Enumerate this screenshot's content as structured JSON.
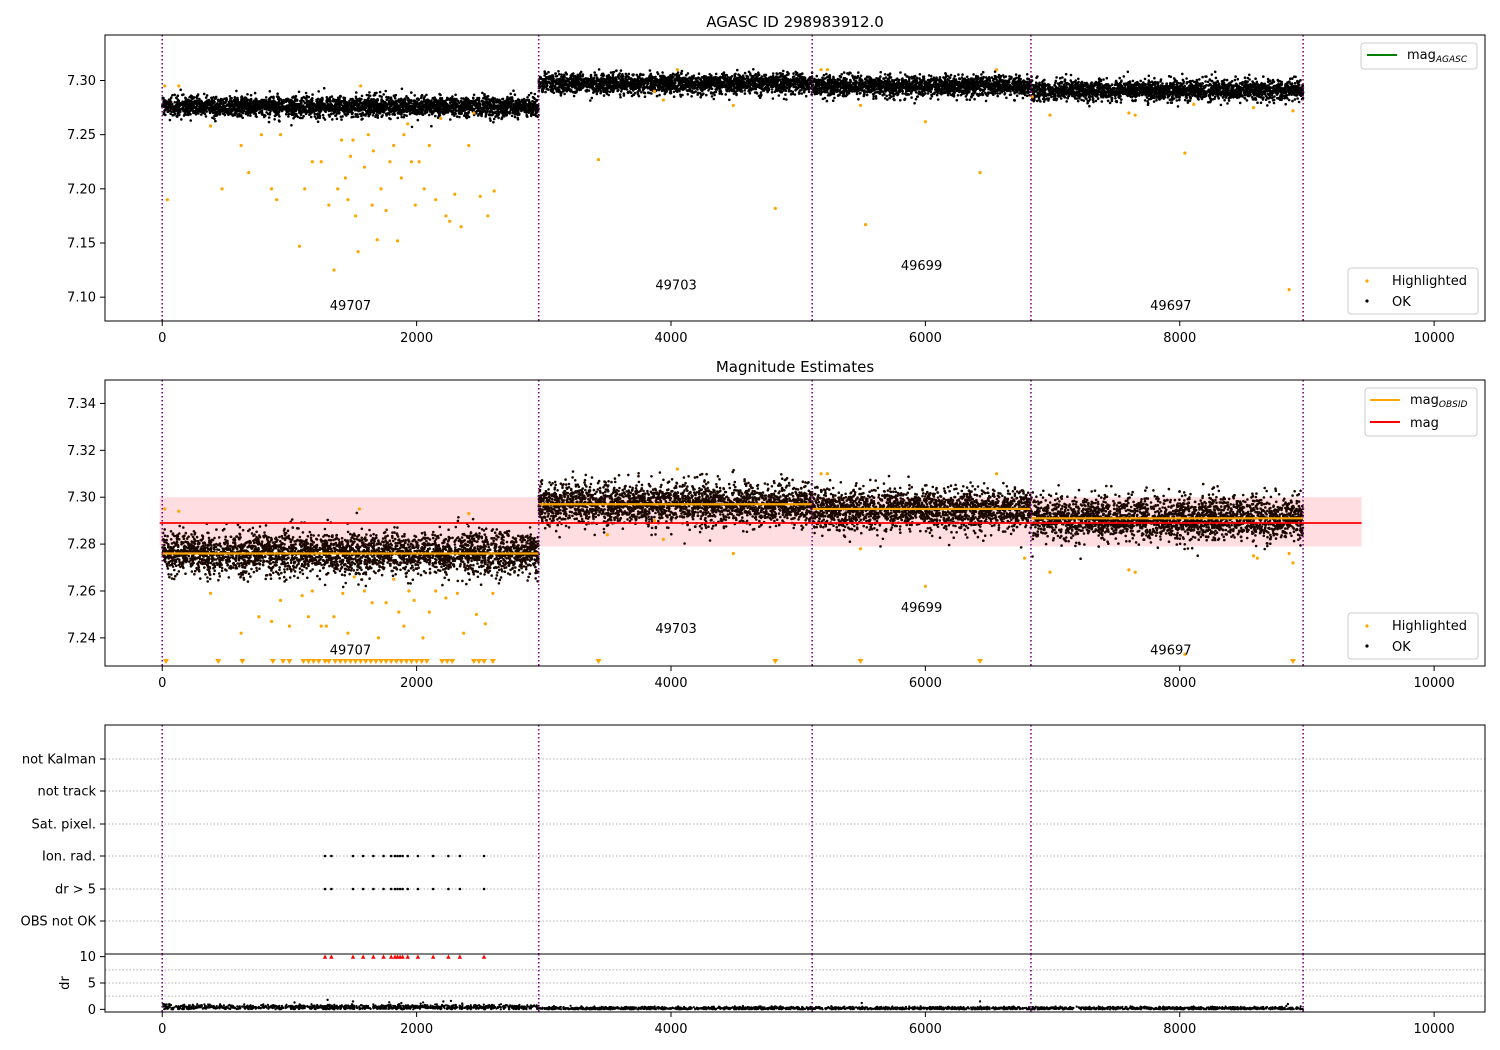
{
  "chart_data": [
    {
      "type": "scatter",
      "title": "AGASC ID 298983912.0",
      "xlabel": "",
      "ylabel": "",
      "xlim": [
        -450,
        10400
      ],
      "ylim": [
        7.078,
        7.342
      ],
      "xticks": [
        0,
        2000,
        4000,
        6000,
        8000,
        10000
      ],
      "yticks": [
        7.1,
        7.15,
        7.2,
        7.25,
        7.3
      ],
      "ytick_labels": [
        "7.10",
        "7.15",
        "7.20",
        "7.25",
        "7.30"
      ],
      "obsid_boundaries": [
        0,
        2960,
        5110,
        6830,
        8970
      ],
      "obsid_labels": [
        {
          "text": "49707",
          "x": 1480,
          "y": 7.088
        },
        {
          "text": "49703",
          "x": 4040,
          "y": 7.107
        },
        {
          "text": "49699",
          "x": 5970,
          "y": 7.125
        },
        {
          "text": "49697",
          "x": 7930,
          "y": 7.088
        }
      ],
      "legend_lines": [
        {
          "name": "mag",
          "sub": "AGASC",
          "color": "#008000"
        }
      ],
      "legend_points": [
        {
          "name": "Highlighted",
          "color": "#ffa500"
        },
        {
          "name": "OK",
          "color": "#000000"
        }
      ],
      "series": [
        {
          "name": "OK",
          "color": "#000000",
          "segments": [
            {
              "x": [
                0,
                2960
              ],
              "mean": 7.276,
              "spread": 0.0045
            },
            {
              "x": [
                2960,
                5110
              ],
              "mean": 7.297,
              "spread": 0.0045
            },
            {
              "x": [
                5110,
                6830
              ],
              "mean": 7.295,
              "spread": 0.0045
            },
            {
              "x": [
                6830,
                8970
              ],
              "mean": 7.291,
              "spread": 0.0045
            }
          ]
        },
        {
          "name": "Highlighted",
          "color": "#ffa500",
          "points": [
            [
              20,
              7.295
            ],
            [
              40,
              7.19
            ],
            [
              130,
              7.295
            ],
            [
              380,
              7.258
            ],
            [
              470,
              7.2
            ],
            [
              620,
              7.24
            ],
            [
              680,
              7.215
            ],
            [
              780,
              7.25
            ],
            [
              860,
              7.2
            ],
            [
              900,
              7.19
            ],
            [
              930,
              7.25
            ],
            [
              1080,
              7.147
            ],
            [
              1120,
              7.2
            ],
            [
              1180,
              7.225
            ],
            [
              1250,
              7.225
            ],
            [
              1310,
              7.185
            ],
            [
              1350,
              7.125
            ],
            [
              1380,
              7.2
            ],
            [
              1410,
              7.245
            ],
            [
              1440,
              7.21
            ],
            [
              1460,
              7.19
            ],
            [
              1480,
              7.23
            ],
            [
              1500,
              7.245
            ],
            [
              1520,
              7.175
            ],
            [
              1540,
              7.142
            ],
            [
              1560,
              7.295
            ],
            [
              1590,
              7.22
            ],
            [
              1620,
              7.25
            ],
            [
              1650,
              7.185
            ],
            [
              1660,
              7.235
            ],
            [
              1690,
              7.153
            ],
            [
              1720,
              7.2
            ],
            [
              1760,
              7.18
            ],
            [
              1790,
              7.225
            ],
            [
              1820,
              7.24
            ],
            [
              1850,
              7.152
            ],
            [
              1880,
              7.21
            ],
            [
              1900,
              7.25
            ],
            [
              1930,
              7.26
            ],
            [
              1960,
              7.225
            ],
            [
              1990,
              7.185
            ],
            [
              2020,
              7.225
            ],
            [
              2060,
              7.2
            ],
            [
              2100,
              7.24
            ],
            [
              2150,
              7.19
            ],
            [
              2190,
              7.265
            ],
            [
              2230,
              7.175
            ],
            [
              2260,
              7.17
            ],
            [
              2300,
              7.195
            ],
            [
              2350,
              7.165
            ],
            [
              2410,
              7.24
            ],
            [
              2450,
              7.27
            ],
            [
              2500,
              7.193
            ],
            [
              2560,
              7.175
            ],
            [
              2610,
              7.198
            ],
            [
              3430,
              7.227
            ],
            [
              3870,
              7.29
            ],
            [
              3940,
              7.282
            ],
            [
              4050,
              7.31
            ],
            [
              4490,
              7.277
            ],
            [
              4820,
              7.182
            ],
            [
              5180,
              7.31
            ],
            [
              5230,
              7.31
            ],
            [
              5490,
              7.277
            ],
            [
              5530,
              7.167
            ],
            [
              6000,
              7.262
            ],
            [
              6430,
              7.215
            ],
            [
              6560,
              7.31
            ],
            [
              6840,
              7.285
            ],
            [
              6980,
              7.268
            ],
            [
              7600,
              7.27
            ],
            [
              7650,
              7.268
            ],
            [
              8040,
              7.233
            ],
            [
              8110,
              7.278
            ],
            [
              8580,
              7.275
            ],
            [
              8860,
              7.107
            ],
            [
              8890,
              7.272
            ]
          ]
        }
      ]
    },
    {
      "type": "scatter",
      "title": "Magnitude Estimates",
      "xlabel": "",
      "ylabel": "",
      "xlim": [
        -450,
        10400
      ],
      "ylim": [
        7.228,
        7.35
      ],
      "xticks": [
        0,
        2000,
        4000,
        6000,
        8000,
        10000
      ],
      "yticks": [
        7.24,
        7.26,
        7.28,
        7.3,
        7.32,
        7.34
      ],
      "ytick_labels": [
        "7.24",
        "7.26",
        "7.28",
        "7.30",
        "7.32",
        "7.34"
      ],
      "obsid_boundaries": [
        0,
        2960,
        5110,
        6830,
        8970
      ],
      "obsid_labels": [
        {
          "text": "49707",
          "x": 1480,
          "y": 7.233
        },
        {
          "text": "49703",
          "x": 4040,
          "y": 7.242
        },
        {
          "text": "49699",
          "x": 5970,
          "y": 7.251
        },
        {
          "text": "49697",
          "x": 7930,
          "y": 7.233
        }
      ],
      "mag_line": {
        "value": 7.289,
        "band": [
          7.279,
          7.3
        ],
        "x": [
          -20,
          9430
        ],
        "color": "#ff0000",
        "band_color": "#ffdde1"
      },
      "obsid_mean_lines": [
        {
          "x": [
            0,
            2960
          ],
          "value": 7.276
        },
        {
          "x": [
            2960,
            5110
          ],
          "value": 7.297
        },
        {
          "x": [
            5110,
            6830
          ],
          "value": 7.295
        },
        {
          "x": [
            6830,
            8970
          ],
          "value": 7.291
        }
      ],
      "legend_lines": [
        {
          "name": "mag",
          "sub": "OBSID",
          "color": "#ffa500"
        },
        {
          "name": "mag",
          "sub": "",
          "color": "#ff0000"
        }
      ],
      "legend_points": [
        {
          "name": "Highlighted",
          "color": "#ffa500"
        },
        {
          "name": "OK",
          "color": "#000000"
        }
      ],
      "series": [
        {
          "name": "OK",
          "color": "#000000",
          "segments": [
            {
              "x": [
                0,
                2960
              ],
              "mean": 7.276,
              "spread": 0.0045
            },
            {
              "x": [
                2960,
                5110
              ],
              "mean": 7.297,
              "spread": 0.0045
            },
            {
              "x": [
                5110,
                6830
              ],
              "mean": 7.295,
              "spread": 0.0045
            },
            {
              "x": [
                6830,
                8970
              ],
              "mean": 7.291,
              "spread": 0.0045
            }
          ]
        },
        {
          "name": "Highlighted",
          "color": "#ffa500",
          "points": [
            [
              20,
              7.295
            ],
            [
              130,
              7.294
            ],
            [
              380,
              7.259
            ],
            [
              620,
              7.242
            ],
            [
              760,
              7.249
            ],
            [
              860,
              7.247
            ],
            [
              930,
              7.256
            ],
            [
              1000,
              7.245
            ],
            [
              1100,
              7.258
            ],
            [
              1150,
              7.249
            ],
            [
              1180,
              7.26
            ],
            [
              1250,
              7.245
            ],
            [
              1290,
              7.245
            ],
            [
              1350,
              7.249
            ],
            [
              1420,
              7.259
            ],
            [
              1460,
              7.242
            ],
            [
              1510,
              7.266
            ],
            [
              1550,
              7.295
            ],
            [
              1590,
              7.26
            ],
            [
              1650,
              7.255
            ],
            [
              1700,
              7.24
            ],
            [
              1760,
              7.255
            ],
            [
              1820,
              7.265
            ],
            [
              1860,
              7.251
            ],
            [
              1900,
              7.245
            ],
            [
              1940,
              7.26
            ],
            [
              1980,
              7.256
            ],
            [
              2050,
              7.24
            ],
            [
              2100,
              7.251
            ],
            [
              2150,
              7.26
            ],
            [
              2230,
              7.257
            ],
            [
              2320,
              7.259
            ],
            [
              2370,
              7.242
            ],
            [
              2410,
              7.293
            ],
            [
              2470,
              7.25
            ],
            [
              2540,
              7.246
            ],
            [
              2600,
              7.259
            ],
            [
              3500,
              7.284
            ],
            [
              3870,
              7.29
            ],
            [
              3940,
              7.282
            ],
            [
              4050,
              7.312
            ],
            [
              4490,
              7.276
            ],
            [
              5180,
              7.31
            ],
            [
              5230,
              7.31
            ],
            [
              5490,
              7.278
            ],
            [
              6000,
              7.262
            ],
            [
              6560,
              7.31
            ],
            [
              6780,
              7.274
            ],
            [
              6980,
              7.268
            ],
            [
              7600,
              7.269
            ],
            [
              7650,
              7.268
            ],
            [
              8040,
              7.233
            ],
            [
              8580,
              7.275
            ],
            [
              8610,
              7.274
            ],
            [
              8860,
              7.276
            ],
            [
              8890,
              7.272
            ]
          ]
        },
        {
          "name": "below-range",
          "color": "#ffa500",
          "marker": "triangle-down",
          "points": [
            [
              30
            ],
            [
              440
            ],
            [
              630
            ],
            [
              870
            ],
            [
              950
            ],
            [
              1000
            ],
            [
              1110
            ],
            [
              1150
            ],
            [
              1190
            ],
            [
              1230
            ],
            [
              1280
            ],
            [
              1310
            ],
            [
              1360
            ],
            [
              1400
            ],
            [
              1440
            ],
            [
              1480
            ],
            [
              1520
            ],
            [
              1560
            ],
            [
              1600
            ],
            [
              1640
            ],
            [
              1680
            ],
            [
              1720
            ],
            [
              1760
            ],
            [
              1800
            ],
            [
              1840
            ],
            [
              1880
            ],
            [
              1920
            ],
            [
              1960
            ],
            [
              2000
            ],
            [
              2040
            ],
            [
              2080
            ],
            [
              2200
            ],
            [
              2240
            ],
            [
              2280
            ],
            [
              2450
            ],
            [
              2490
            ],
            [
              2530
            ],
            [
              2600
            ],
            [
              3430
            ],
            [
              4820
            ],
            [
              5490
            ],
            [
              6430
            ],
            [
              8890
            ]
          ]
        }
      ]
    },
    {
      "type": "scatter",
      "title": "",
      "xlabel": "",
      "ylabel": "",
      "categories": [
        "not Kalman",
        "not track",
        "Sat. pixel.",
        "Ion. rad.",
        "dr > 5",
        "OBS not OK"
      ],
      "xlim": [
        -450,
        10400
      ],
      "obsid_boundaries": [
        0,
        2960,
        5110,
        6830,
        8970
      ],
      "flag_points": {
        "Ion. rad.": [
          1280,
          1330,
          1500,
          1580,
          1660,
          1740,
          1800,
          1830,
          1850,
          1870,
          1890,
          1930,
          2010,
          2130,
          2250,
          2340,
          2530
        ],
        "dr > 5": [
          1280,
          1330,
          1500,
          1580,
          1660,
          1740,
          1800,
          1830,
          1850,
          1870,
          1890,
          1930,
          2010,
          2130,
          2250,
          2340,
          2530
        ]
      }
    },
    {
      "type": "scatter",
      "title": "",
      "xlabel": "",
      "ylabel": "dr",
      "xlim": [
        -450,
        10400
      ],
      "ylim": [
        -0.5,
        10.5
      ],
      "xticks": [
        0,
        2000,
        4000,
        6000,
        8000,
        10000
      ],
      "yticks": [
        0,
        5,
        10
      ],
      "ytick_labels": [
        "0",
        "5",
        "10"
      ],
      "obsid_boundaries": [
        0,
        2960,
        5110,
        6830,
        8970
      ],
      "clipped_marker_color": "#ff0000",
      "clipped_points": [
        1280,
        1330,
        1500,
        1580,
        1660,
        1740,
        1800,
        1830,
        1850,
        1870,
        1890,
        1930,
        2010,
        2130,
        2250,
        2340,
        2530
      ],
      "series": [
        {
          "name": "dr",
          "color": "#000000",
          "segments": [
            {
              "x": [
                0,
                2960
              ],
              "mean": 0.4,
              "spread": 0.25
            },
            {
              "x": [
                2960,
                8970
              ],
              "mean": 0.2,
              "spread": 0.15
            }
          ],
          "outliers": [
            [
              1040,
              1.3
            ],
            [
              1300,
              1.8
            ],
            [
              1500,
              1.5
            ],
            [
              1880,
              1.2
            ],
            [
              2210,
              1.5
            ],
            [
              2270,
              1.6
            ],
            [
              5500,
              1.2
            ],
            [
              6430,
              1.5
            ],
            [
              8850,
              1.0
            ]
          ]
        }
      ]
    }
  ]
}
